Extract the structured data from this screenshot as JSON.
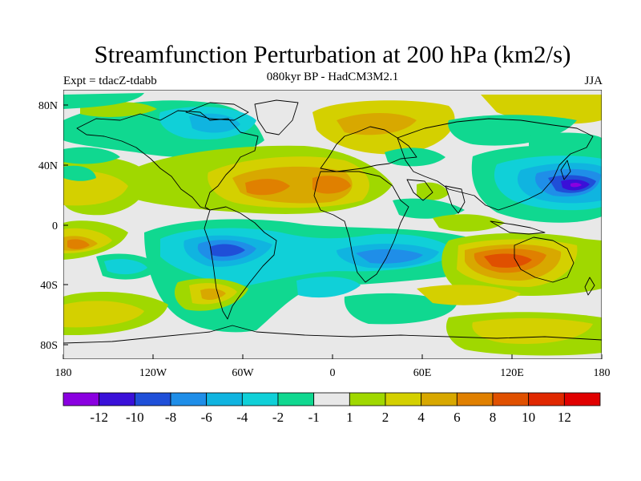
{
  "header": {
    "title": "Streamfunction Perturbation at 200 hPa (km2/s)",
    "subtitle": "080kyr BP - HadCM3M2.1",
    "experiment": "Expt = tdacZ-tdabb",
    "season": "JJA"
  },
  "axes": {
    "x_ticks": [
      "180",
      "120W",
      "60W",
      "0",
      "60E",
      "120E",
      "180"
    ],
    "y_ticks": [
      "80N",
      "40N",
      "0",
      "40S",
      "80S"
    ]
  },
  "colorbar": {
    "colors": [
      "#8a00e0",
      "#3a10d8",
      "#1f4fd8",
      "#1f8ee8",
      "#10b4e0",
      "#10d0d8",
      "#10d890",
      "#e8e8e8",
      "#a0d800",
      "#d4d000",
      "#d8a800",
      "#e08000",
      "#e05000",
      "#e02800",
      "#e00000"
    ],
    "labels": [
      "-12",
      "-10",
      "-8",
      "-6",
      "-4",
      "-2",
      "-1",
      "1",
      "2",
      "4",
      "6",
      "8",
      "10",
      "12"
    ]
  },
  "field_colors": {
    "neutral": "#e8e8e8",
    "pos_light": "#a0d800",
    "pos_mid": "#d4d000",
    "pos_strong": "#d8a800",
    "pos_heavy": "#e08000",
    "pos_peak": "#e05000",
    "neg_light": "#10d890",
    "neg_mid": "#10d0d8",
    "neg_strong": "#10b4e0",
    "neg_heavy": "#1f8ee8",
    "neg_peak": "#1f4fd8",
    "neg_extreme": "#3a10d8",
    "neg_max": "#8a00e0"
  }
}
